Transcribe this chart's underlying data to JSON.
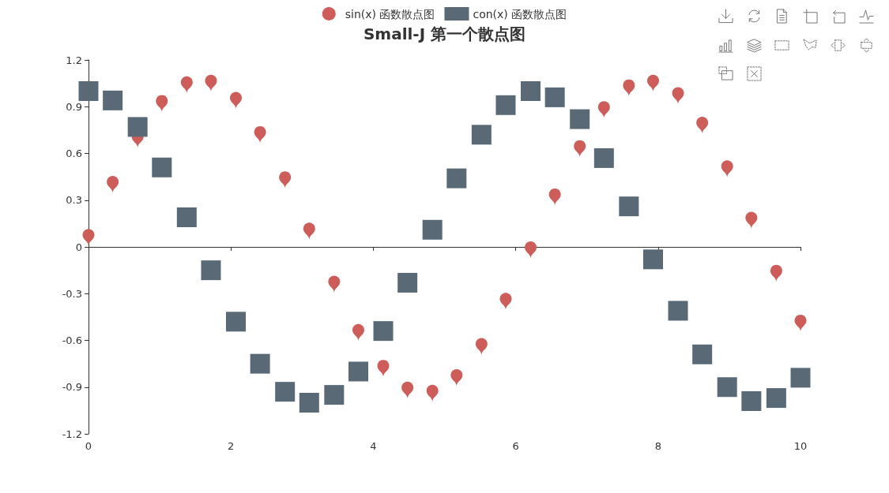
{
  "chart_data": {
    "type": "scatter",
    "title": "Small-J 第一个散点图",
    "x": [
      0,
      0.34,
      0.69,
      1.03,
      1.38,
      1.72,
      2.07,
      2.41,
      2.76,
      3.1,
      3.45,
      3.79,
      4.14,
      4.48,
      4.83,
      5.17,
      5.52,
      5.86,
      6.21,
      6.55,
      6.9,
      7.24,
      7.59,
      7.93,
      8.28,
      8.62,
      8.97,
      9.31,
      9.66,
      10
    ],
    "series": [
      {
        "name": "sin(x) 函数散点图",
        "color": "#ce5d5a",
        "values": [
          0.06,
          0.4,
          0.69,
          0.92,
          1.04,
          1.05,
          0.94,
          0.72,
          0.43,
          0.1,
          -0.24,
          -0.55,
          -0.78,
          -0.92,
          -0.94,
          -0.84,
          -0.64,
          -0.35,
          -0.02,
          0.32,
          0.63,
          0.88,
          1.02,
          1.05,
          0.97,
          0.78,
          0.5,
          0.17,
          -0.17,
          -0.49
        ]
      },
      {
        "name": "con(x) 函数散点图",
        "color": "#596a76",
        "marker": "square",
        "values": [
          1,
          0.94,
          0.77,
          0.51,
          0.19,
          -0.15,
          -0.48,
          -0.75,
          -0.93,
          -1.0,
          -0.95,
          -0.8,
          -0.54,
          -0.23,
          0.11,
          0.44,
          0.72,
          0.91,
          1.0,
          0.96,
          0.82,
          0.57,
          0.26,
          -0.08,
          -0.41,
          -0.69,
          -0.9,
          -0.99,
          -0.97,
          -0.84
        ]
      }
    ],
    "xlim": [
      0,
      10
    ],
    "xticks": [
      0,
      2,
      4,
      6,
      8,
      10
    ],
    "ylim": [
      -1.2,
      1.2
    ],
    "yticks": [
      -1.2,
      -0.9,
      -0.6,
      -0.3,
      0,
      0.3,
      0.6,
      0.9,
      1.2
    ],
    "legend": "top"
  }
}
